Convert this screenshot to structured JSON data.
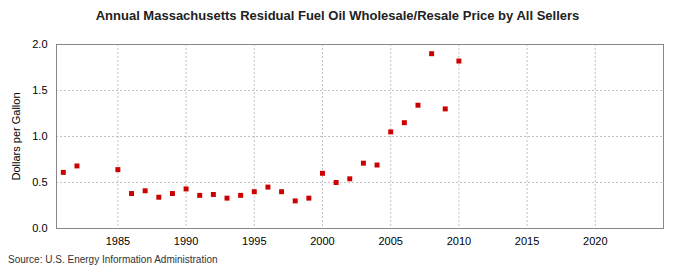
{
  "chart_data": {
    "type": "scatter",
    "title": "Annual Massachusetts Residual Fuel Oil Wholesale/Resale Price by All Sellers",
    "y_label": "Dollars per Gallon",
    "source": "Source: U.S. Energy Information Administration",
    "x": [
      1981,
      1982,
      1985,
      1986,
      1987,
      1988,
      1989,
      1990,
      1991,
      1992,
      1993,
      1994,
      1995,
      1996,
      1997,
      1998,
      1999,
      2000,
      2001,
      2002,
      2003,
      2004,
      2005,
      2006,
      2007,
      2008,
      2009,
      2010
    ],
    "values": [
      0.61,
      0.68,
      0.64,
      0.38,
      0.41,
      0.34,
      0.38,
      0.43,
      0.36,
      0.37,
      0.33,
      0.36,
      0.4,
      0.45,
      0.4,
      0.3,
      0.33,
      0.6,
      0.5,
      0.54,
      0.71,
      0.69,
      1.05,
      1.15,
      1.34,
      1.9,
      1.3,
      1.82
    ],
    "color": "#cc0000",
    "marker": "square",
    "xlim": [
      1980.5,
      2025
    ],
    "xticks": [
      1985,
      1990,
      1995,
      2000,
      2005,
      2010,
      2015,
      2020
    ],
    "ylim": [
      0,
      2
    ],
    "yticks": [
      {
        "value": 0,
        "label": "0.0"
      },
      {
        "value": 0.5,
        "label": "0.5"
      },
      {
        "value": 1,
        "label": "1.0"
      },
      {
        "value": 1.5,
        "label": "1.5"
      },
      {
        "value": 2,
        "label": "2.0"
      }
    ],
    "grid": true
  }
}
